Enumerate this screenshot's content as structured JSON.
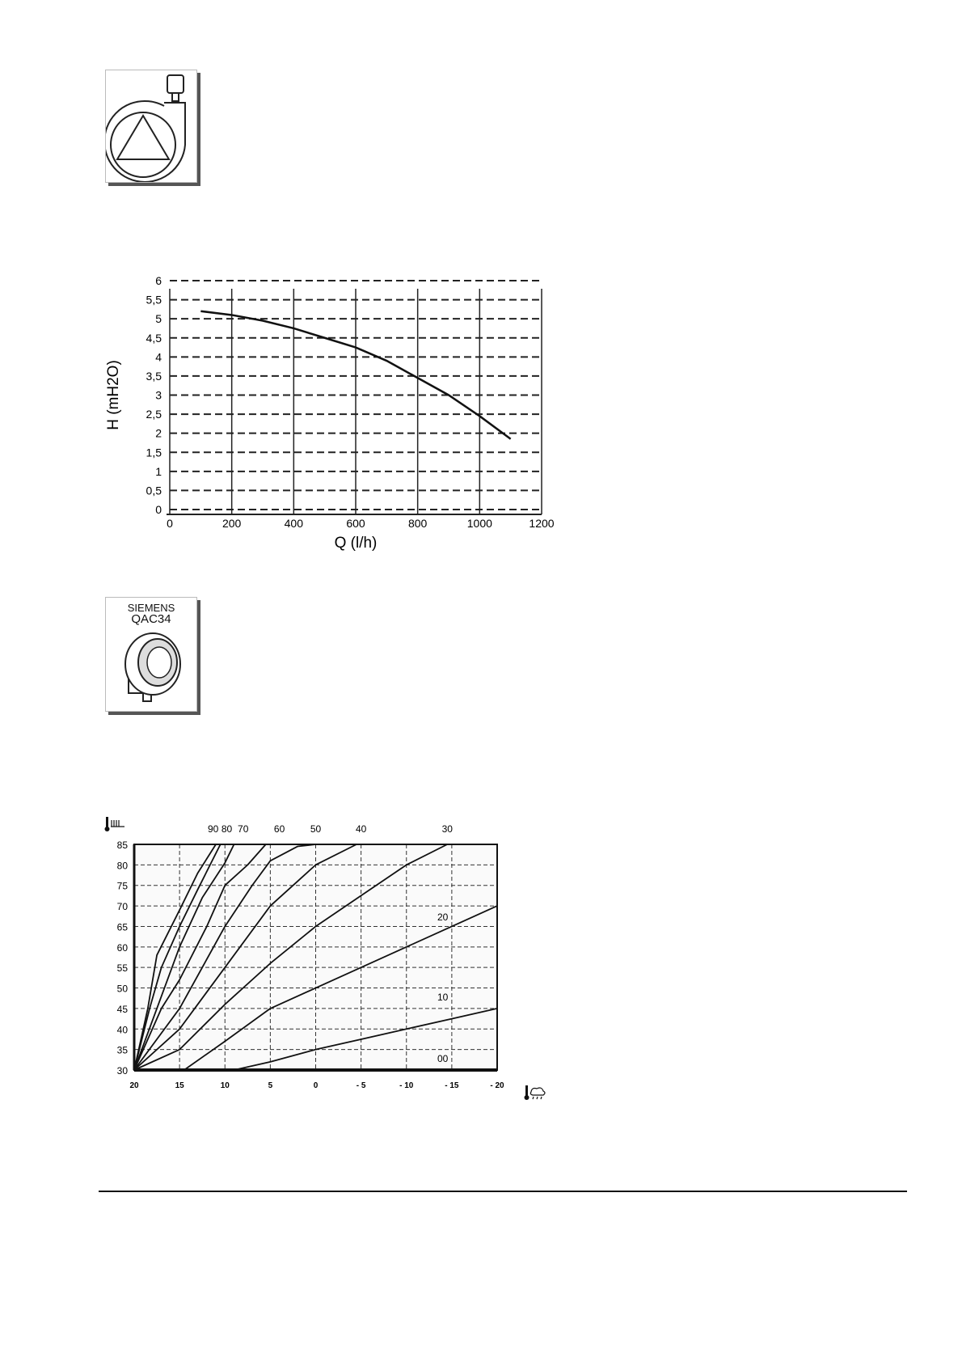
{
  "pump_icon": {
    "icon": "circulation-pump-icon"
  },
  "sensor_icon": {
    "icon": "outdoor-sensor-icon",
    "brand": "SIEMENS",
    "model": "QAC34"
  },
  "chart_data": [
    {
      "type": "line",
      "xlabel": "Q (l/h)",
      "ylabel": "H (mH2O)",
      "xlim": [
        0,
        1200
      ],
      "ylim": [
        0,
        6
      ],
      "x_ticks": [
        "0",
        "200",
        "400",
        "600",
        "800",
        "1000",
        "1200"
      ],
      "y_ticks": [
        "0",
        "0,5",
        "1",
        "1,5",
        "2",
        "2,5",
        "3",
        "3,5",
        "4",
        "4,5",
        "5",
        "5,5",
        "6"
      ],
      "grid": true,
      "series": [
        {
          "points": [
            [
              100,
              5.2
            ],
            [
              200,
              5.1
            ],
            [
              300,
              4.95
            ],
            [
              400,
              4.75
            ],
            [
              500,
              4.5
            ],
            [
              600,
              4.25
            ],
            [
              700,
              3.9
            ],
            [
              800,
              3.45
            ],
            [
              900,
              3.0
            ],
            [
              1000,
              2.45
            ],
            [
              1100,
              1.85
            ]
          ]
        }
      ]
    },
    {
      "type": "line",
      "xlabel_icon": "outdoor-temperature-icon",
      "ylabel_icon": "radiator-temperature-icon",
      "xlim": [
        20,
        -20
      ],
      "ylim": [
        30,
        85
      ],
      "x_ticks": [
        "20",
        "15",
        "10",
        "5",
        "0",
        "- 5",
        "- 10",
        "- 15",
        "- 20"
      ],
      "y_ticks": [
        "30",
        "35",
        "40",
        "45",
        "50",
        "55",
        "60",
        "65",
        "70",
        "75",
        "80",
        "85"
      ],
      "grid": true,
      "series": [
        {
          "name": "90",
          "points": [
            [
              20,
              30
            ],
            [
              18.5,
              45
            ],
            [
              17.5,
              58
            ],
            [
              15,
              69
            ],
            [
              13,
              78
            ],
            [
              11,
              85
            ]
          ]
        },
        {
          "name": "80",
          "points": [
            [
              20,
              30
            ],
            [
              18.3,
              45
            ],
            [
              17,
              55
            ],
            [
              15,
              65
            ],
            [
              13,
              74
            ],
            [
              10.5,
              85
            ]
          ]
        },
        {
          "name": "70",
          "points": [
            [
              20,
              30
            ],
            [
              17.5,
              45
            ],
            [
              15,
              60
            ],
            [
              12.5,
              72
            ],
            [
              10,
              80.5
            ],
            [
              9,
              85
            ]
          ]
        },
        {
          "name": "60",
          "points": [
            [
              20,
              30
            ],
            [
              17,
              45
            ],
            [
              15,
              52
            ],
            [
              12,
              65
            ],
            [
              10,
              75
            ],
            [
              7.5,
              80
            ],
            [
              5.5,
              85
            ]
          ]
        },
        {
          "name": "50",
          "points": [
            [
              20,
              30
            ],
            [
              15,
              45
            ],
            [
              10,
              65
            ],
            [
              7,
              75
            ],
            [
              5,
              81
            ],
            [
              2,
              84.5
            ],
            [
              0,
              85
            ]
          ]
        },
        {
          "name": "40",
          "points": [
            [
              20,
              30
            ],
            [
              15,
              40
            ],
            [
              10,
              55
            ],
            [
              5,
              70
            ],
            [
              2,
              76
            ],
            [
              0,
              80
            ],
            [
              -4.5,
              85
            ]
          ]
        },
        {
          "name": "30",
          "points": [
            [
              20,
              30
            ],
            [
              15,
              35
            ],
            [
              10,
              46
            ],
            [
              5,
              56
            ],
            [
              0,
              65
            ],
            [
              -5,
              72.5
            ],
            [
              -10,
              80
            ],
            [
              -14.5,
              85
            ]
          ]
        },
        {
          "name": "20",
          "points": [
            [
              14.5,
              30
            ],
            [
              10,
              37
            ],
            [
              5,
              45
            ],
            [
              0,
              50
            ],
            [
              -5,
              55
            ],
            [
              -10,
              60
            ],
            [
              -15,
              65
            ],
            [
              -20,
              70
            ]
          ]
        },
        {
          "name": "10",
          "points": [
            [
              9,
              30
            ],
            [
              5,
              32
            ],
            [
              0,
              35
            ],
            [
              -5,
              37.5
            ],
            [
              -10,
              40
            ],
            [
              -15,
              42.5
            ],
            [
              -20,
              45
            ]
          ]
        },
        {
          "name": "00",
          "points": [
            [
              20,
              30
            ],
            [
              -20,
              30
            ]
          ]
        }
      ]
    }
  ]
}
